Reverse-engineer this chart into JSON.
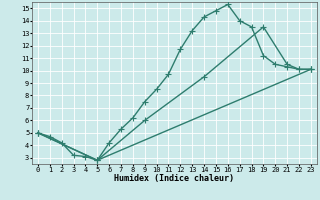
{
  "xlabel": "Humidex (Indice chaleur)",
  "bg_color": "#cceaea",
  "grid_color": "#ffffff",
  "line_color": "#2e7d6e",
  "xlim": [
    -0.5,
    23.5
  ],
  "ylim": [
    2.5,
    15.5
  ],
  "xticks": [
    0,
    1,
    2,
    3,
    4,
    5,
    6,
    7,
    8,
    9,
    10,
    11,
    12,
    13,
    14,
    15,
    16,
    17,
    18,
    19,
    20,
    21,
    22,
    23
  ],
  "yticks": [
    3,
    4,
    5,
    6,
    7,
    8,
    9,
    10,
    11,
    12,
    13,
    14,
    15
  ],
  "line1_x": [
    0,
    1,
    2,
    3,
    4,
    5,
    6,
    7,
    8,
    9,
    10,
    11,
    12,
    13,
    14,
    15,
    16,
    17,
    18,
    19,
    20,
    21,
    22,
    23
  ],
  "line1_y": [
    5.0,
    4.7,
    4.2,
    3.2,
    3.1,
    2.8,
    4.2,
    5.3,
    6.2,
    7.5,
    8.5,
    9.7,
    11.7,
    13.2,
    14.3,
    14.8,
    15.3,
    14.0,
    13.5,
    11.2,
    10.5,
    10.3,
    10.1,
    10.1
  ],
  "line2_x": [
    0,
    5,
    23
  ],
  "line2_y": [
    5.0,
    2.8,
    10.1
  ],
  "line3_x": [
    0,
    5,
    9,
    14,
    19,
    21,
    22,
    23
  ],
  "line3_y": [
    5.0,
    2.8,
    6.0,
    9.5,
    13.5,
    10.5,
    10.1,
    10.1
  ],
  "marker": "+",
  "markersize": 4,
  "linewidth": 1.0,
  "axis_fontsize": 6,
  "tick_fontsize": 5
}
